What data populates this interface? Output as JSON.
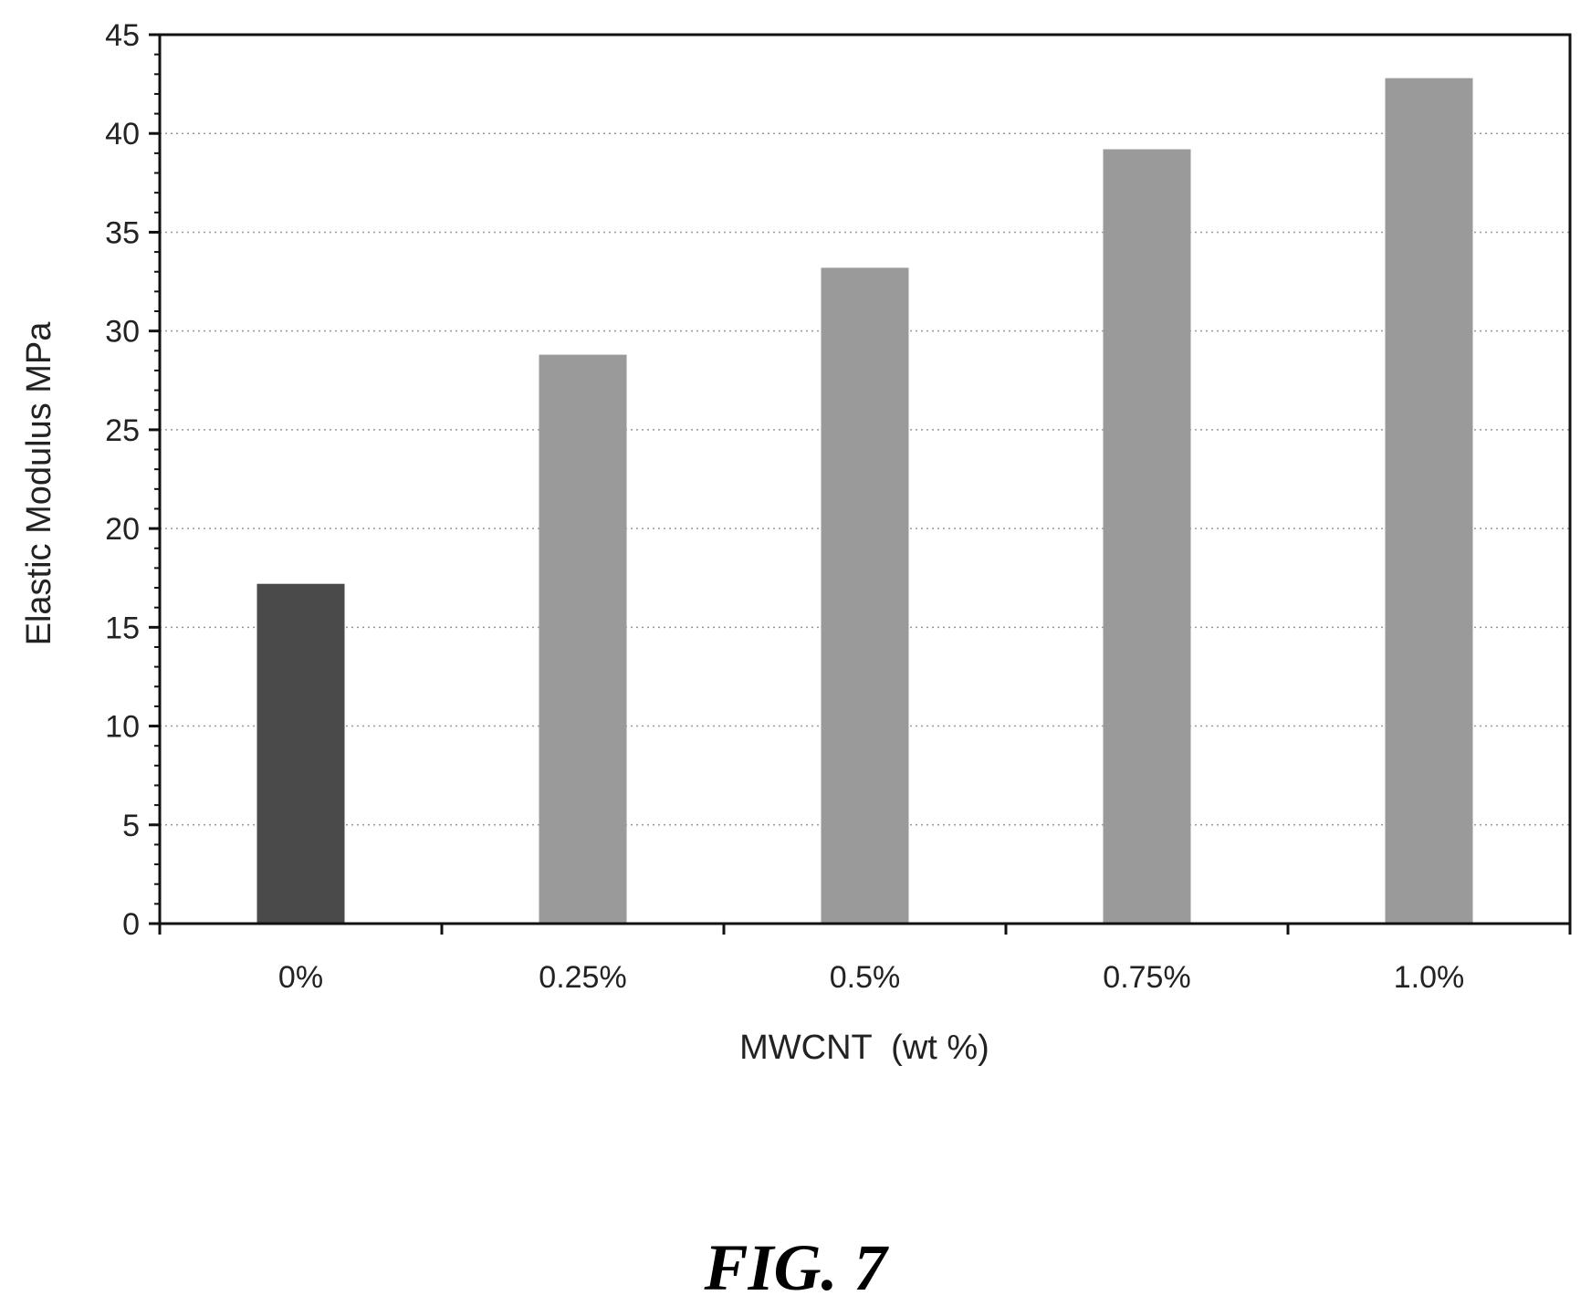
{
  "figure_label": "FIG. 7",
  "chart_data": {
    "type": "bar",
    "categories": [
      "0%",
      "0.25%",
      "0.5%",
      "0.75%",
      "1.0%"
    ],
    "values": [
      17.2,
      28.8,
      33.2,
      39.2,
      42.8
    ],
    "xlabel": "MWCNT  (wt %)",
    "ylabel": "Elastic Modulus MPa",
    "ylim": [
      0,
      45
    ],
    "yticks": [
      0,
      5,
      10,
      15,
      20,
      25,
      30,
      35,
      40,
      45
    ],
    "grid": true,
    "bar_colors": [
      "#4a4a4a",
      "#9a9a9a",
      "#9a9a9a",
      "#9a9a9a",
      "#9a9a9a"
    ]
  }
}
